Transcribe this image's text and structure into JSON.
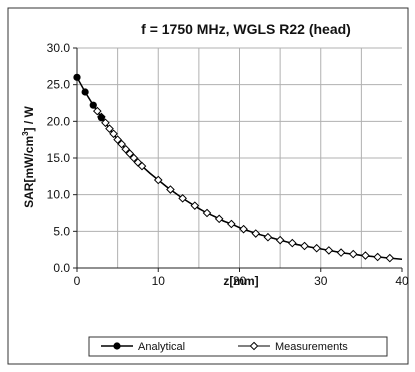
{
  "chart_data": {
    "type": "line",
    "title": "f = 1750 MHz, WGLS R22 (head)",
    "xlabel": "z[mm]",
    "ylabel": "SAR[mW/cm",
    "ylabel_sup": "3",
    "ylabel_tail": "] / W",
    "xlim": [
      0,
      40
    ],
    "ylim": [
      0,
      30
    ],
    "xticks": [
      "0",
      "10",
      "20",
      "30",
      "40"
    ],
    "yticks": [
      "0.0",
      "5.0",
      "10.0",
      "15.0",
      "20.0",
      "25.0",
      "30.0"
    ],
    "x_grid": [
      5,
      10,
      15,
      20,
      25,
      30,
      35
    ],
    "y_grid": [
      5,
      10,
      15,
      20,
      25,
      30
    ],
    "grid": true,
    "legend_position": "bottom",
    "series": [
      {
        "name": "Analytical",
        "marker": "filled-circle",
        "x": [
          0,
          1,
          2,
          3,
          4,
          5,
          6,
          7,
          8,
          9,
          10,
          11,
          12,
          13,
          14,
          15,
          16,
          17,
          18,
          19,
          20,
          21,
          22,
          23,
          24,
          25,
          26,
          27,
          28,
          29,
          30,
          31,
          32,
          33,
          34,
          35,
          36,
          37,
          38,
          39,
          40
        ],
        "values": [
          26.0,
          24.0,
          22.2,
          20.5,
          19.0,
          17.5,
          16.2,
          15.0,
          13.9,
          12.9,
          12.0,
          11.1,
          10.3,
          9.5,
          8.8,
          8.1,
          7.5,
          7.0,
          6.4,
          6.0,
          5.5,
          5.1,
          4.7,
          4.4,
          4.1,
          3.8,
          3.5,
          3.2,
          3.0,
          2.8,
          2.6,
          2.4,
          2.2,
          2.0,
          1.9,
          1.7,
          1.6,
          1.5,
          1.4,
          1.3,
          1.2
        ],
        "marker_points": 4,
        "color": "#000000"
      },
      {
        "name": "Measurements",
        "marker": "open-diamond",
        "x": [
          2.5,
          3,
          3.5,
          4,
          4.5,
          5,
          5.5,
          6,
          6.5,
          7,
          7.5,
          8,
          10,
          11.5,
          13,
          14.5,
          16,
          17.5,
          19,
          20.5,
          22,
          23.5,
          25,
          26.5,
          28,
          29.5,
          31,
          32.5,
          34,
          35.5,
          37,
          38.5
        ],
        "values": [
          21.4,
          20.6,
          19.8,
          19.0,
          18.3,
          17.5,
          16.9,
          16.2,
          15.6,
          15.0,
          14.4,
          13.9,
          12.0,
          10.7,
          9.5,
          8.5,
          7.5,
          6.7,
          6.0,
          5.3,
          4.7,
          4.2,
          3.8,
          3.4,
          3.0,
          2.7,
          2.4,
          2.1,
          1.9,
          1.7,
          1.5,
          1.35
        ],
        "color": "#000000"
      }
    ]
  }
}
